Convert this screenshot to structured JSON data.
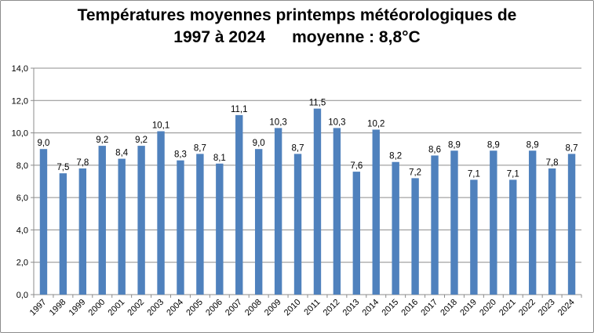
{
  "chart_data": {
    "type": "bar",
    "title_line1": "Températures moyennes printemps météorologiques de",
    "title_line2_years": "1997 à 2024",
    "title_line2_mean": "moyenne : 8,8°C",
    "xlabel": "",
    "ylabel": "",
    "ylim": [
      0,
      14
    ],
    "yticks": [
      "0,0",
      "2,0",
      "4,0",
      "6,0",
      "8,0",
      "10,0",
      "12,0",
      "14,0"
    ],
    "grid": true,
    "legend": "none",
    "bar_color": "#4f81bd",
    "grid_color": "#8c8c8c",
    "categories": [
      "1997",
      "1998",
      "1999",
      "2000",
      "2001",
      "2002",
      "2003",
      "2004",
      "2005",
      "2006",
      "2007",
      "2008",
      "2009",
      "2010",
      "2011",
      "2012",
      "2013",
      "2014",
      "2015",
      "2016",
      "2017",
      "2018",
      "2019",
      "2020",
      "2021",
      "2022",
      "2023",
      "2024"
    ],
    "values": [
      9.0,
      7.5,
      7.8,
      9.2,
      8.4,
      9.2,
      10.1,
      8.3,
      8.7,
      8.1,
      11.1,
      9.0,
      10.3,
      8.7,
      11.5,
      10.3,
      7.6,
      10.2,
      8.2,
      7.2,
      8.6,
      8.9,
      7.1,
      8.9,
      7.1,
      8.9,
      7.8,
      8.7
    ],
    "value_labels": [
      "9,0",
      "7,5",
      "7,8",
      "9,2",
      "8,4",
      "9,2",
      "10,1",
      "8,3",
      "8,7",
      "8,1",
      "11,1",
      "9,0",
      "10,3",
      "8,7",
      "11,5",
      "10,3",
      "7,6",
      "10,2",
      "8,2",
      "7,2",
      "8,6",
      "8,9",
      "7,1",
      "8,9",
      "7,1",
      "8,9",
      "7,8",
      "8,7"
    ]
  }
}
